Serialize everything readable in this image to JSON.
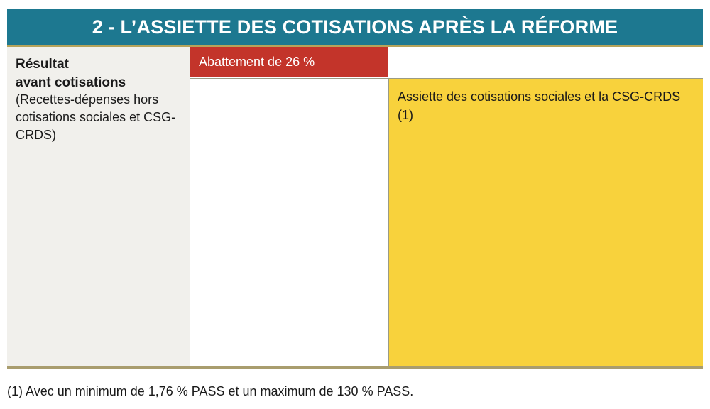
{
  "header": {
    "title": "2 - L’ASSIETTE DES COTISATIONS APRÈS LA RÉFORME"
  },
  "left": {
    "heading": [
      "Résultat",
      "avant cotisations"
    ],
    "detail": "(Recettes-dépenses hors cotisations sociales et CSG-CRDS)"
  },
  "abattement": {
    "label": "Abattement de 26 %"
  },
  "assiette": {
    "label": "Assiette des cotisations sociales et la CSG-CRDS (1)"
  },
  "footnote": "(1) Avec un minimum de 1,76 % PASS et un maximum de 130 % PASS."
}
